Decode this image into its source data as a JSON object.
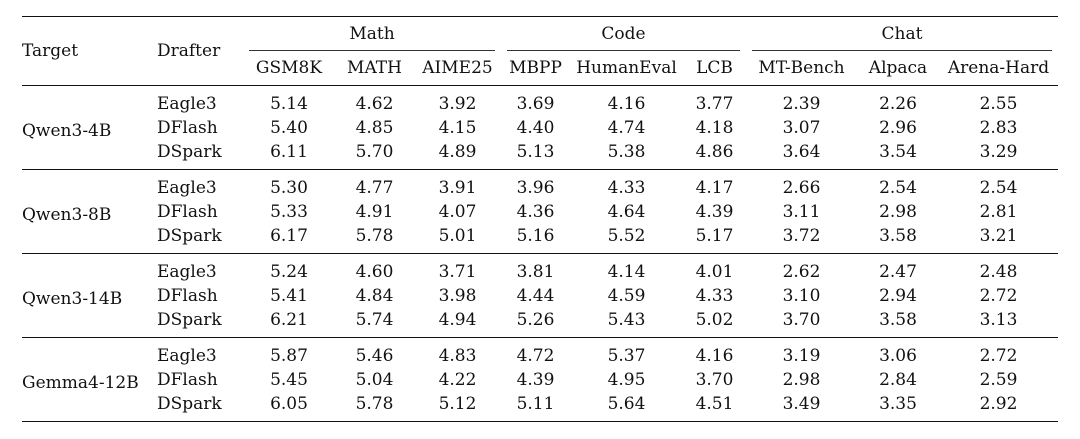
{
  "header": {
    "target": "Target",
    "drafter": "Drafter",
    "groups": [
      "Math",
      "Code",
      "Chat"
    ],
    "columns": [
      "GSM8K",
      "MATH",
      "AIME25",
      "MBPP",
      "HumanEval",
      "LCB",
      "MT-Bench",
      "Alpaca",
      "Arena-Hard"
    ]
  },
  "groups": [
    {
      "target": "Qwen3-4B",
      "rows": [
        {
          "drafter": "Eagle3",
          "values": [
            "5.14",
            "4.62",
            "3.92",
            "3.69",
            "4.16",
            "3.77",
            "2.39",
            "2.26",
            "2.55"
          ]
        },
        {
          "drafter": "DFlash",
          "values": [
            "5.40",
            "4.85",
            "4.15",
            "4.40",
            "4.74",
            "4.18",
            "3.07",
            "2.96",
            "2.83"
          ]
        },
        {
          "drafter": "DSpark",
          "values": [
            "6.11",
            "5.70",
            "4.89",
            "5.13",
            "5.38",
            "4.86",
            "3.64",
            "3.54",
            "3.29"
          ]
        }
      ]
    },
    {
      "target": "Qwen3-8B",
      "rows": [
        {
          "drafter": "Eagle3",
          "values": [
            "5.30",
            "4.77",
            "3.91",
            "3.96",
            "4.33",
            "4.17",
            "2.66",
            "2.54",
            "2.54"
          ]
        },
        {
          "drafter": "DFlash",
          "values": [
            "5.33",
            "4.91",
            "4.07",
            "4.36",
            "4.64",
            "4.39",
            "3.11",
            "2.98",
            "2.81"
          ]
        },
        {
          "drafter": "DSpark",
          "values": [
            "6.17",
            "5.78",
            "5.01",
            "5.16",
            "5.52",
            "5.17",
            "3.72",
            "3.58",
            "3.21"
          ]
        }
      ]
    },
    {
      "target": "Qwen3-14B",
      "rows": [
        {
          "drafter": "Eagle3",
          "values": [
            "5.24",
            "4.60",
            "3.71",
            "3.81",
            "4.14",
            "4.01",
            "2.62",
            "2.47",
            "2.48"
          ]
        },
        {
          "drafter": "DFlash",
          "values": [
            "5.41",
            "4.84",
            "3.98",
            "4.44",
            "4.59",
            "4.33",
            "3.10",
            "2.94",
            "2.72"
          ]
        },
        {
          "drafter": "DSpark",
          "values": [
            "6.21",
            "5.74",
            "4.94",
            "5.26",
            "5.43",
            "5.02",
            "3.70",
            "3.58",
            "3.13"
          ]
        }
      ]
    },
    {
      "target": "Gemma4-12B",
      "rows": [
        {
          "drafter": "Eagle3",
          "values": [
            "5.87",
            "5.46",
            "4.83",
            "4.72",
            "5.37",
            "4.16",
            "3.19",
            "3.06",
            "2.72"
          ]
        },
        {
          "drafter": "DFlash",
          "values": [
            "5.45",
            "5.04",
            "4.22",
            "4.39",
            "4.95",
            "3.70",
            "2.98",
            "2.84",
            "2.59"
          ]
        },
        {
          "drafter": "DSpark",
          "values": [
            "6.05",
            "5.78",
            "5.12",
            "5.11",
            "5.64",
            "4.51",
            "3.49",
            "3.35",
            "2.92"
          ]
        }
      ]
    }
  ]
}
